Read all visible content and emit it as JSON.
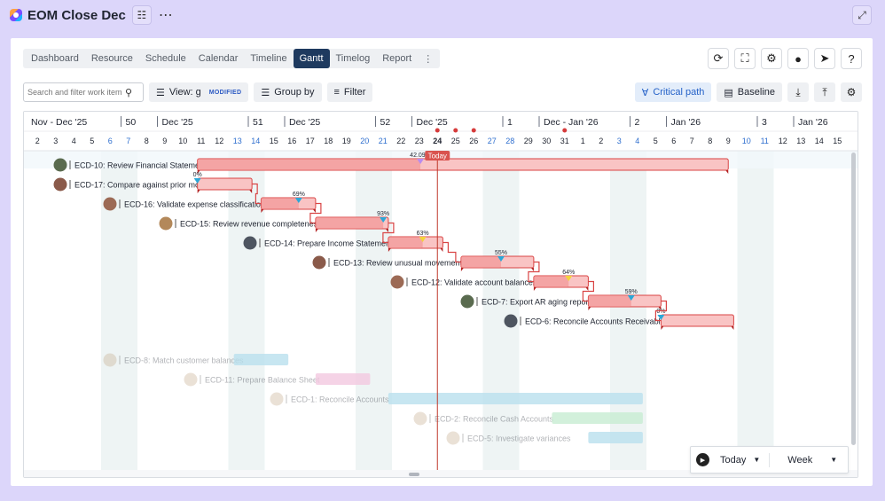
{
  "header": {
    "title": "EOM Close Dec"
  },
  "tabs": [
    {
      "label": "Dashboard",
      "active": false
    },
    {
      "label": "Resource",
      "active": false
    },
    {
      "label": "Schedule",
      "active": false
    },
    {
      "label": "Calendar",
      "active": false
    },
    {
      "label": "Timeline",
      "active": false
    },
    {
      "label": "Gantt",
      "active": true
    },
    {
      "label": "Timelog",
      "active": false
    },
    {
      "label": "Report",
      "active": false
    }
  ],
  "toolbar": {
    "search_placeholder": "Search and filter work item",
    "view_label": "View: g",
    "view_badge": "MODIFIED",
    "group_label": "Group by",
    "filter_label": "Filter",
    "critical_label": "Critical path",
    "baseline_label": "Baseline"
  },
  "timeline": {
    "periods": [
      {
        "label": "Nov - Dec '25",
        "col": 0
      },
      {
        "label": "50",
        "col": 5
      },
      {
        "label": "Dec '25",
        "col": 7
      },
      {
        "label": "51",
        "col": 12
      },
      {
        "label": "Dec '25",
        "col": 14
      },
      {
        "label": "52",
        "col": 19
      },
      {
        "label": "Dec '25",
        "col": 21
      },
      {
        "label": "1",
        "col": 26
      },
      {
        "label": "Dec - Jan '26",
        "col": 28
      },
      {
        "label": "2",
        "col": 33
      },
      {
        "label": "Jan '26",
        "col": 35
      },
      {
        "label": "3",
        "col": 40
      },
      {
        "label": "Jan '26",
        "col": 42
      }
    ],
    "days": [
      "2",
      "3",
      "4",
      "5",
      "6",
      "7",
      "8",
      "9",
      "10",
      "11",
      "12",
      "13",
      "14",
      "15",
      "16",
      "17",
      "18",
      "19",
      "20",
      "21",
      "22",
      "23",
      "24",
      "25",
      "26",
      "27",
      "28",
      "29",
      "30",
      "31",
      "1",
      "2",
      "3",
      "4",
      "5",
      "6",
      "7",
      "8",
      "9",
      "10",
      "11",
      "12",
      "13",
      "14",
      "15"
    ],
    "weekend_cols": [
      4,
      5,
      11,
      12,
      18,
      19,
      25,
      26,
      32,
      33,
      39,
      40
    ],
    "today_col": 22,
    "today_label": "Today",
    "marker_cols": [
      22,
      23,
      24,
      29
    ]
  },
  "tasks": [
    {
      "label": "ECD-10: Review Financial Statements",
      "start": 9.3,
      "end": 38.5,
      "progress": "42.09%",
      "progress_pos": 0.42,
      "critical": true,
      "faded": false,
      "avatar": "#5a6b4f",
      "label_x": 55
    },
    {
      "label": "ECD-17: Compare against prior month",
      "start": 9.3,
      "end": 12.3,
      "progress": "0%",
      "progress_pos": 0.0,
      "critical": true,
      "faded": false,
      "avatar": "#8a5a4a",
      "label_x": 55
    },
    {
      "label": "ECD-16: Validate expense classification",
      "start": 12.8,
      "end": 15.8,
      "progress": "69%",
      "progress_pos": 0.69,
      "critical": true,
      "faded": false,
      "avatar": "#9c6a55",
      "label_x": 111
    },
    {
      "label": "ECD-15: Review revenue completeness",
      "start": 15.8,
      "end": 19.8,
      "progress": "93%",
      "progress_pos": 0.93,
      "critical": true,
      "faded": false,
      "avatar": "#b3885a",
      "label_x": 174
    },
    {
      "label": "ECD-14: Prepare Income Statement",
      "start": 19.8,
      "end": 22.8,
      "progress": "63%",
      "progress_pos": 0.63,
      "critical": true,
      "faded": false,
      "avatar": "#4e5560",
      "label_x": 269
    },
    {
      "label": "ECD-13: Review unusual movements",
      "start": 23.8,
      "end": 27.8,
      "progress": "55%",
      "progress_pos": 0.55,
      "critical": true,
      "faded": false,
      "avatar": "#8a5a4a",
      "label_x": 347
    },
    {
      "label": "ECD-12: Validate account balances",
      "start": 27.8,
      "end": 30.8,
      "progress": "64%",
      "progress_pos": 0.64,
      "critical": true,
      "faded": false,
      "avatar": "#9c6a55",
      "label_x": 435
    },
    {
      "label": "ECD-7: Export AR aging report",
      "start": 30.8,
      "end": 34.8,
      "progress": "59%",
      "progress_pos": 0.59,
      "critical": true,
      "faded": false,
      "avatar": "#5a6b4f",
      "label_x": 514
    },
    {
      "label": "ECD-6: Reconcile Accounts Receivable",
      "start": 34.8,
      "end": 38.8,
      "progress": "0%",
      "progress_pos": 0.0,
      "critical": true,
      "faded": false,
      "avatar": "#4e5560",
      "label_x": 563
    },
    {
      "label": "",
      "start": 0,
      "end": 0,
      "progress": "",
      "progress_pos": 0,
      "critical": false,
      "faded": true,
      "avatar": "",
      "label_x": 0
    },
    {
      "label": "ECD-8: Match customer balances",
      "start": 11.3,
      "end": 14.3,
      "progress": "",
      "progress_pos": 0.0,
      "critical": false,
      "faded": true,
      "avatar": "#c4a88a",
      "label_x": 111,
      "color": "#b9e0ee"
    },
    {
      "label": "ECD-11: Prepare Balance Sheet",
      "start": 15.8,
      "end": 18.8,
      "progress": "",
      "progress_pos": 0.0,
      "critical": false,
      "faded": true,
      "avatar": "#c4a88a",
      "label_x": 202,
      "color": "#f2c8e0"
    },
    {
      "label": "ECD-1: Reconcile Accounts",
      "start": 19.8,
      "end": 33.8,
      "progress": "",
      "progress_pos": 0.0,
      "critical": false,
      "faded": true,
      "avatar": "#c4a88a",
      "label_x": 299,
      "color": "#b9e0ee"
    },
    {
      "label": "ECD-2: Reconcile Cash Accounts",
      "start": 28.8,
      "end": 33.8,
      "progress": "",
      "progress_pos": 0.0,
      "critical": false,
      "faded": true,
      "avatar": "#c4a88a",
      "label_x": 461,
      "color": "#c7ecd2"
    },
    {
      "label": "ECD-5: Investigate variances",
      "start": 30.8,
      "end": 33.8,
      "progress": "",
      "progress_pos": 0.0,
      "critical": false,
      "faded": true,
      "avatar": "#c4a88a",
      "label_x": 498,
      "color": "#b9e0ee"
    }
  ],
  "controls": {
    "today_label": "Today",
    "scale_label": "Week"
  }
}
